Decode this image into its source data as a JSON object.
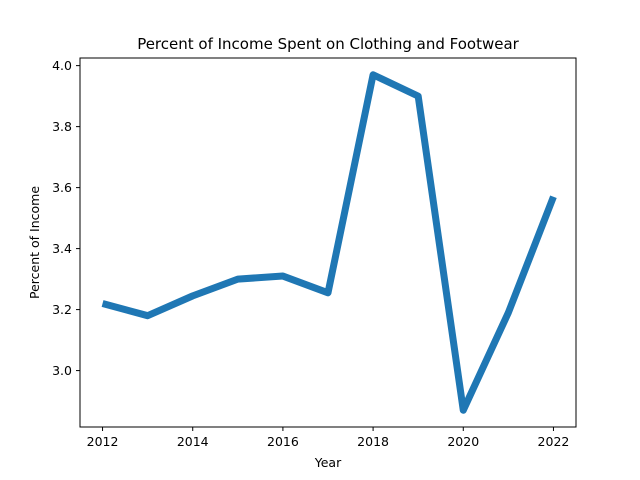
{
  "chart_data": {
    "type": "line",
    "title": "Percent of Income Spent on Clothing and Footwear",
    "xlabel": "Year",
    "ylabel": "Percent of Income",
    "x": [
      2012,
      2013,
      2014,
      2015,
      2016,
      2017,
      2018,
      2019,
      2020,
      2021,
      2022
    ],
    "series": [
      {
        "values": [
          3.22,
          3.18,
          3.245,
          3.3,
          3.31,
          3.255,
          3.97,
          3.9,
          2.87,
          3.19,
          3.57
        ],
        "color": "#1f77b4"
      }
    ],
    "xlim": [
      2011.5,
      2022.5
    ],
    "ylim": [
      2.815,
      4.025
    ],
    "xticks": [
      2012,
      2014,
      2016,
      2018,
      2020,
      2022
    ],
    "yticks": [
      3.0,
      3.2,
      3.4,
      3.6,
      3.8,
      4.0
    ],
    "yticklabels": [
      "3.0",
      "3.2",
      "3.4",
      "3.6",
      "3.8",
      "4.0"
    ],
    "grid": false,
    "legend": "none"
  }
}
